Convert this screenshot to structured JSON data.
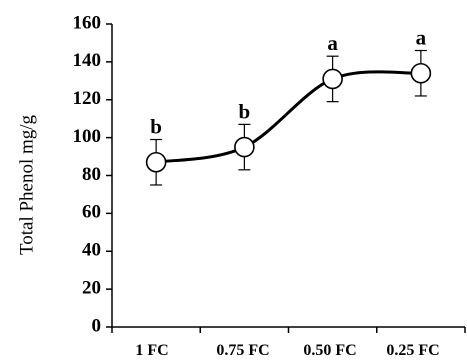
{
  "chart_data": {
    "type": "line",
    "title": "",
    "xlabel": "",
    "ylabel": "Total Phenol mg/g",
    "ylim": [
      0,
      160
    ],
    "yticks": [
      0,
      20,
      40,
      60,
      80,
      100,
      120,
      140,
      160
    ],
    "ytick_labels": [
      "0",
      "20",
      "40",
      "60",
      "80",
      "100",
      "120",
      "140",
      "160"
    ],
    "categories": [
      "1 FC",
      "0.75 FC",
      "0.50 FC",
      "0.25 FC"
    ],
    "series": [
      {
        "values": [
          87,
          95,
          131,
          134
        ],
        "error": [
          12,
          12,
          12,
          12
        ],
        "significance": [
          "b",
          "b",
          "a",
          "a"
        ]
      }
    ],
    "grid": false,
    "smooth": true,
    "marker": "open-circle"
  }
}
